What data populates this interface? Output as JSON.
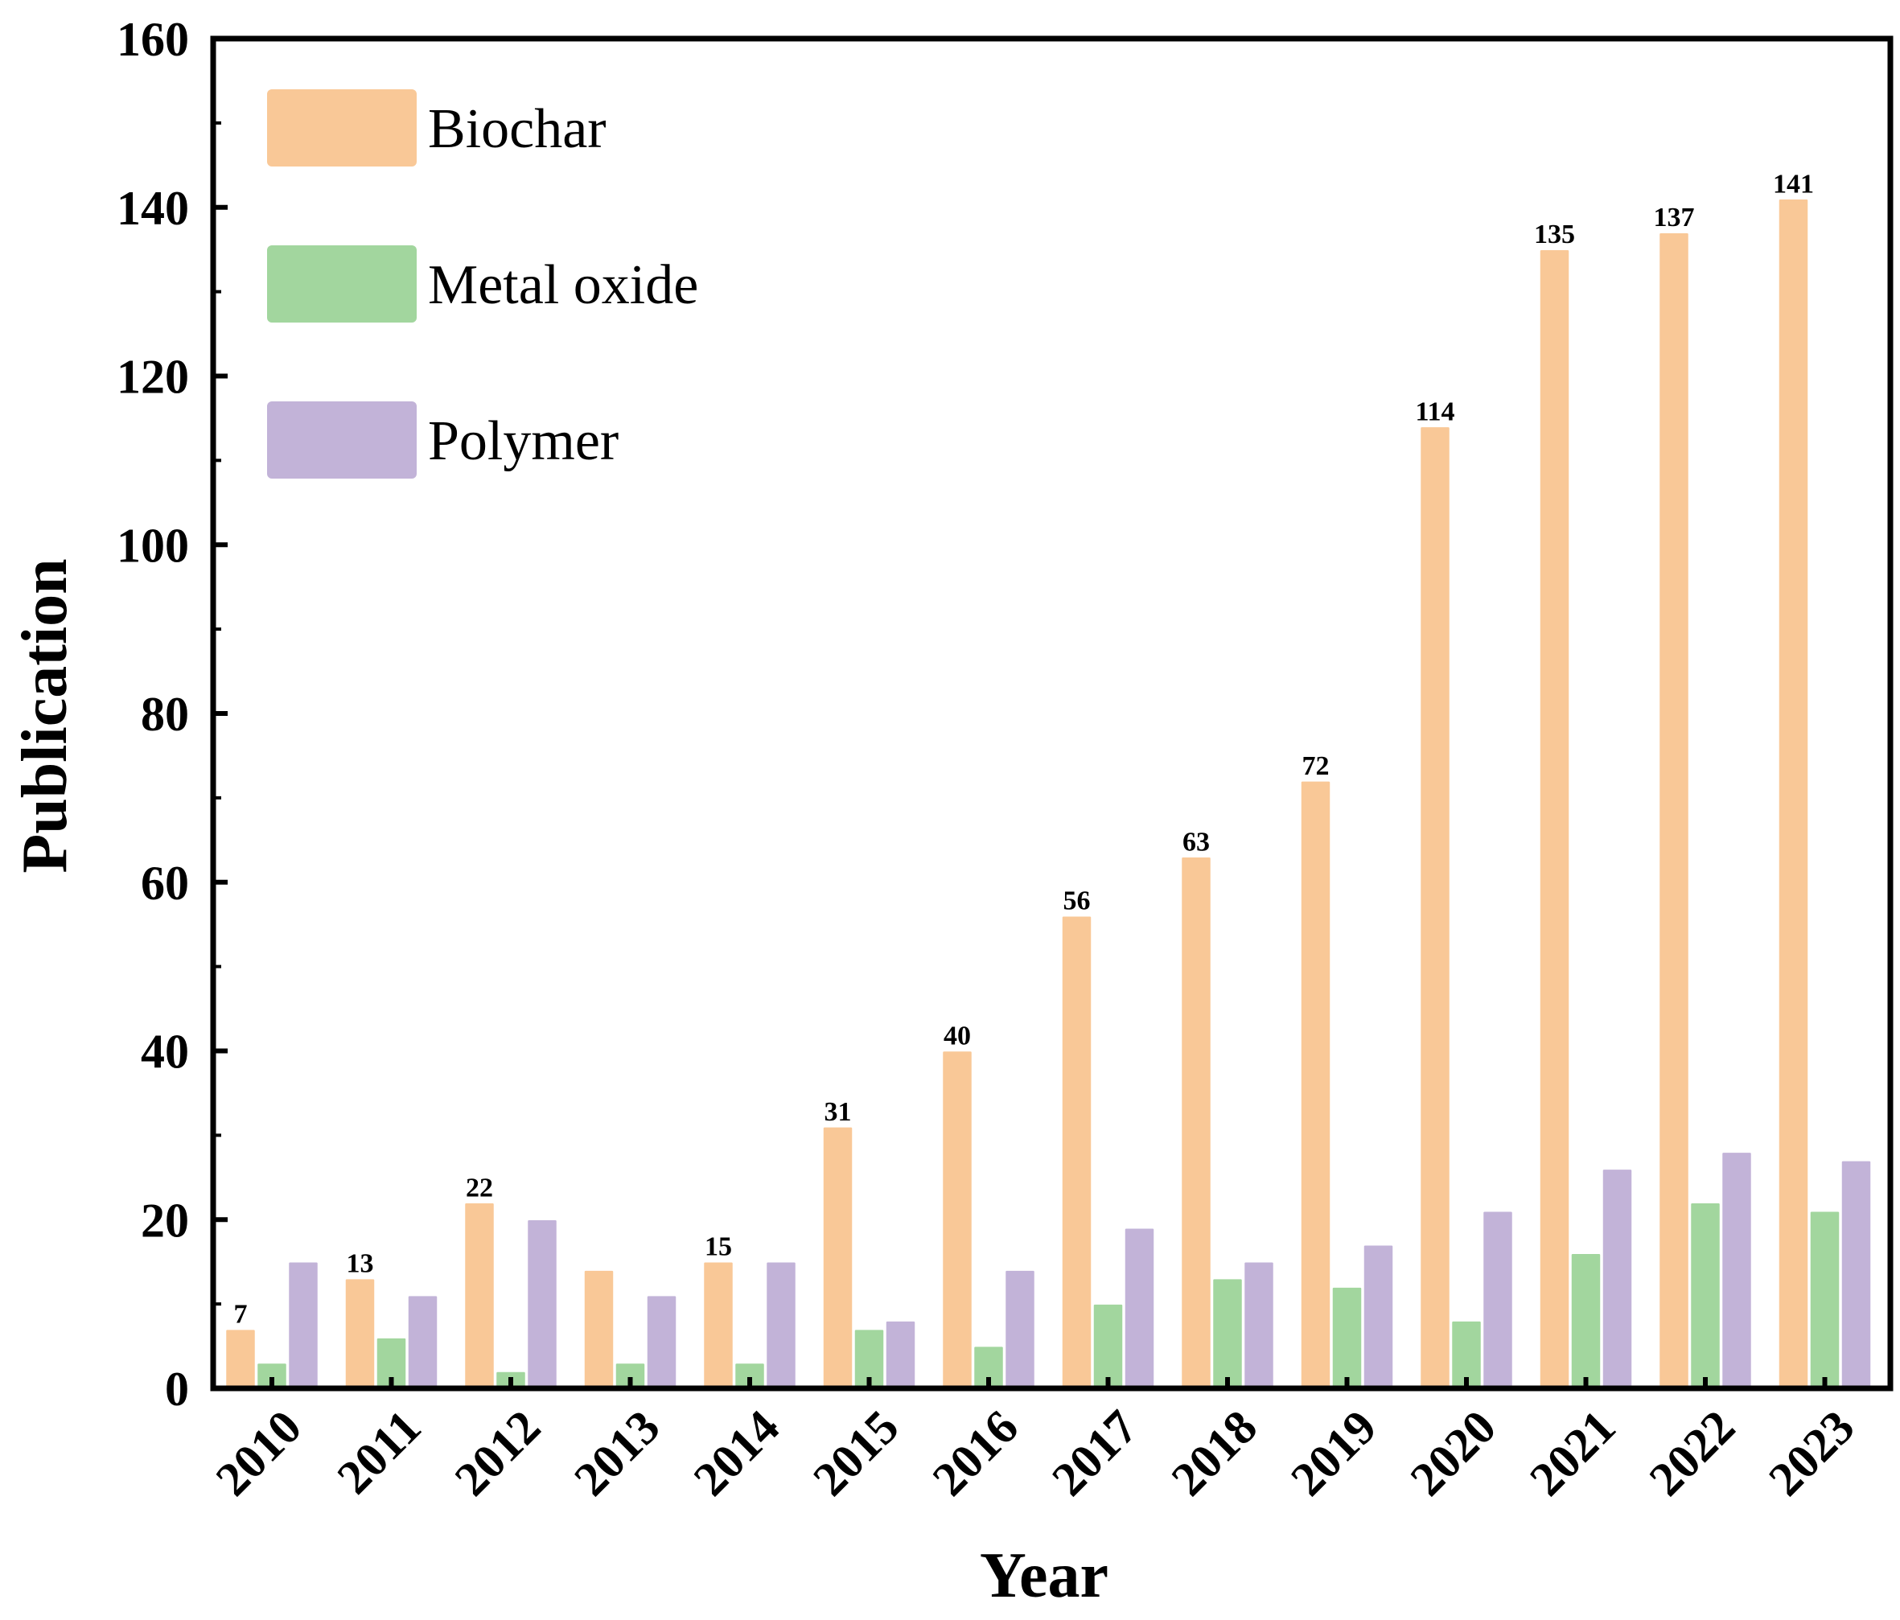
{
  "chart_data": {
    "type": "bar",
    "xlabel": "Year",
    "ylabel": "Publication",
    "ylim": [
      0,
      160
    ],
    "yticks": [
      0,
      20,
      40,
      60,
      80,
      100,
      120,
      140,
      160
    ],
    "categories": [
      "2010",
      "2011",
      "2012",
      "2013",
      "2014",
      "2015",
      "2016",
      "2017",
      "2018",
      "2019",
      "2020",
      "2021",
      "2022",
      "2023"
    ],
    "series": [
      {
        "name": "Biochar",
        "color": "#F9C897",
        "values": [
          7,
          13,
          22,
          14,
          15,
          31,
          40,
          56,
          63,
          72,
          114,
          135,
          137,
          141
        ]
      },
      {
        "name": "Metal oxide",
        "color": "#A2D69E",
        "values": [
          3,
          6,
          2,
          3,
          3,
          7,
          5,
          10,
          13,
          12,
          8,
          16,
          22,
          21
        ]
      },
      {
        "name": "Polymer",
        "color": "#C2B3D8",
        "values": [
          15,
          11,
          20,
          11,
          15,
          8,
          14,
          19,
          15,
          17,
          21,
          26,
          28,
          27
        ]
      }
    ],
    "data_labels": {
      "series": "Biochar",
      "values": [
        "7",
        "13",
        "22",
        "",
        "15",
        "31",
        "40",
        "56",
        "63",
        "72",
        "114",
        "135",
        "137",
        "141"
      ]
    },
    "legend_position": "top-left",
    "grid": false
  }
}
